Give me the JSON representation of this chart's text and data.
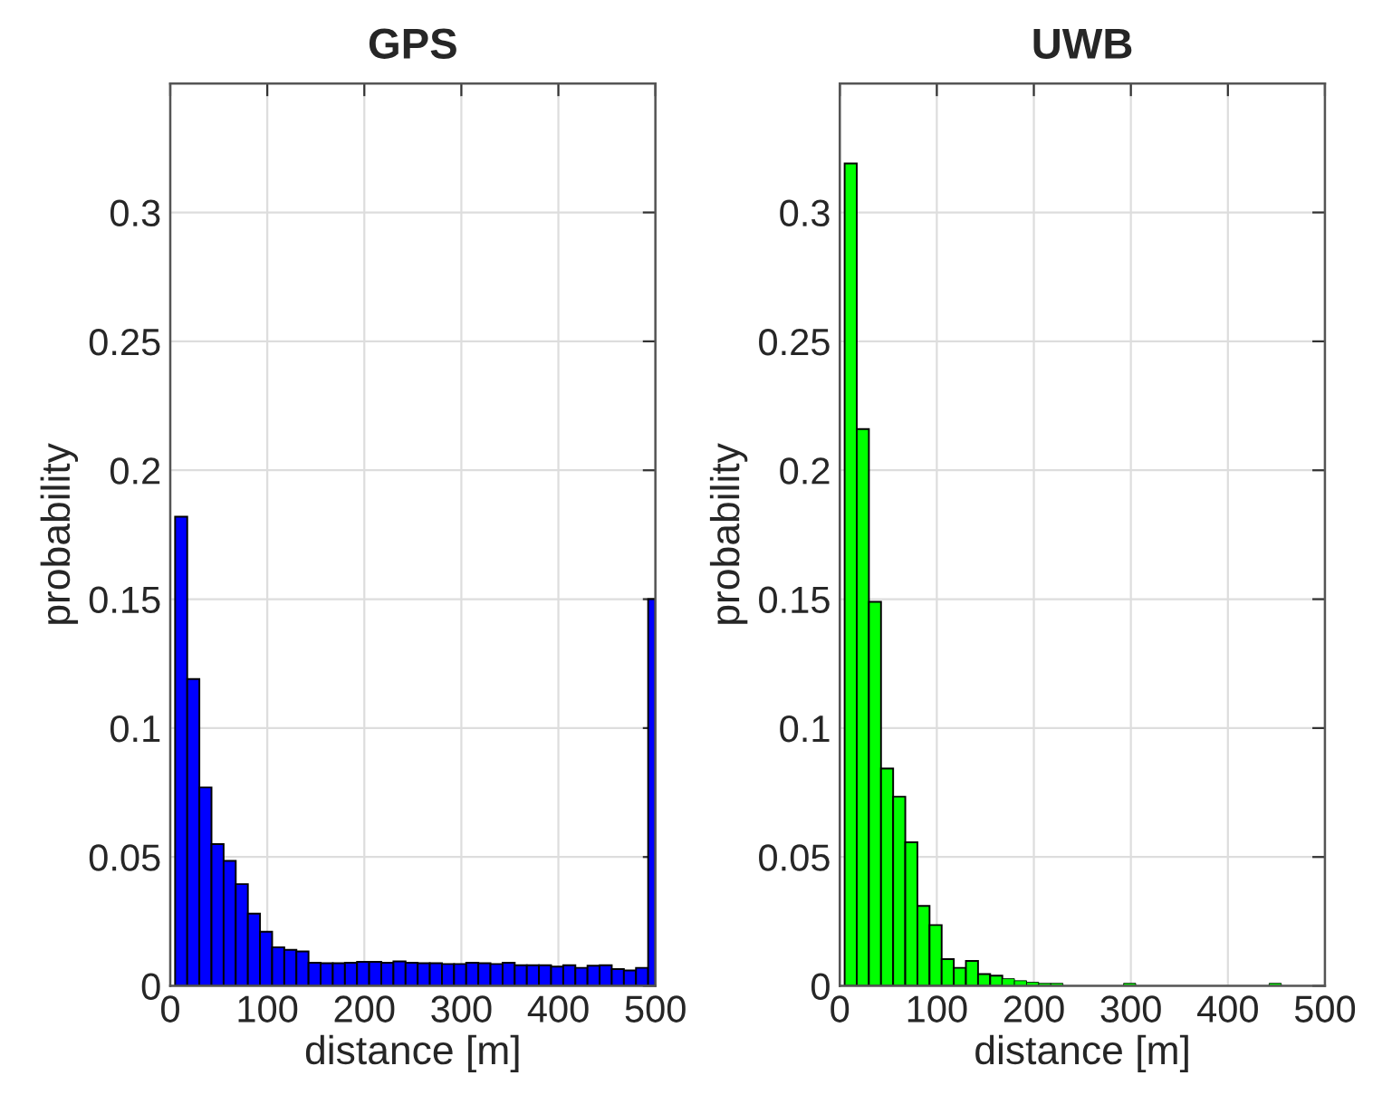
{
  "chart_data": [
    {
      "type": "histogram",
      "title": "GPS",
      "xlabel": "distance [m]",
      "ylabel": "probability",
      "color": "#0000ff",
      "bins": [
        5,
        17.5,
        30,
        42.5,
        55,
        67.5,
        80,
        92.5,
        105,
        117.5,
        130,
        142.5,
        155,
        167.5,
        180,
        192.5,
        205,
        217.5,
        230,
        242.5,
        255,
        267.5,
        280,
        292.5,
        305,
        317.5,
        330,
        342.5,
        355,
        367.5,
        380,
        392.5,
        405,
        417.5,
        430,
        442.5,
        455,
        467.5,
        480,
        492.5,
        500
      ],
      "values": [
        0.182,
        0.119,
        0.077,
        0.055,
        0.0485,
        0.0395,
        0.028,
        0.021,
        0.015,
        0.014,
        0.0134,
        0.009,
        0.0088,
        0.0088,
        0.009,
        0.0093,
        0.0093,
        0.009,
        0.0095,
        0.009,
        0.0088,
        0.0088,
        0.0085,
        0.0085,
        0.009,
        0.0088,
        0.0085,
        0.009,
        0.008,
        0.008,
        0.008,
        0.0075,
        0.008,
        0.007,
        0.0078,
        0.008,
        0.0065,
        0.006,
        0.007,
        0.15
      ],
      "xlim": [
        0,
        500
      ],
      "xticks": [
        0,
        100,
        200,
        300,
        400,
        500
      ],
      "ylim": [
        0,
        0.35
      ],
      "yticks": [
        0,
        0.05,
        0.1,
        0.15,
        0.2,
        0.25,
        0.3
      ],
      "grid": true
    },
    {
      "type": "histogram",
      "title": "UWB",
      "xlabel": "distance [m]",
      "ylabel": "probability",
      "color": "#00ff00",
      "bins": [
        5,
        17.5,
        30,
        42.5,
        55,
        67.5,
        80,
        92.5,
        105,
        117.5,
        130,
        142.5,
        155,
        167.5,
        180,
        192.5,
        205,
        217.5,
        230,
        242.5,
        255,
        267.5,
        280,
        292.5,
        305,
        317.5,
        330,
        342.5,
        355,
        367.5,
        380,
        392.5,
        405,
        417.5,
        430,
        442.5,
        455
      ],
      "values": [
        0.319,
        0.216,
        0.149,
        0.0843,
        0.0734,
        0.0557,
        0.031,
        0.0236,
        0.0104,
        0.007,
        0.0097,
        0.0046,
        0.004,
        0.0028,
        0.002,
        0.0014,
        0.001,
        0.001,
        0,
        0,
        0,
        0,
        0,
        0.001,
        0,
        0,
        0,
        0,
        0,
        0,
        0,
        0,
        0,
        0,
        0,
        0.001
      ],
      "xlim": [
        0,
        500
      ],
      "xticks": [
        0,
        100,
        200,
        300,
        400,
        500
      ],
      "ylim": [
        0,
        0.35
      ],
      "yticks": [
        0,
        0.05,
        0.1,
        0.15,
        0.2,
        0.25,
        0.3
      ],
      "grid": true
    }
  ]
}
